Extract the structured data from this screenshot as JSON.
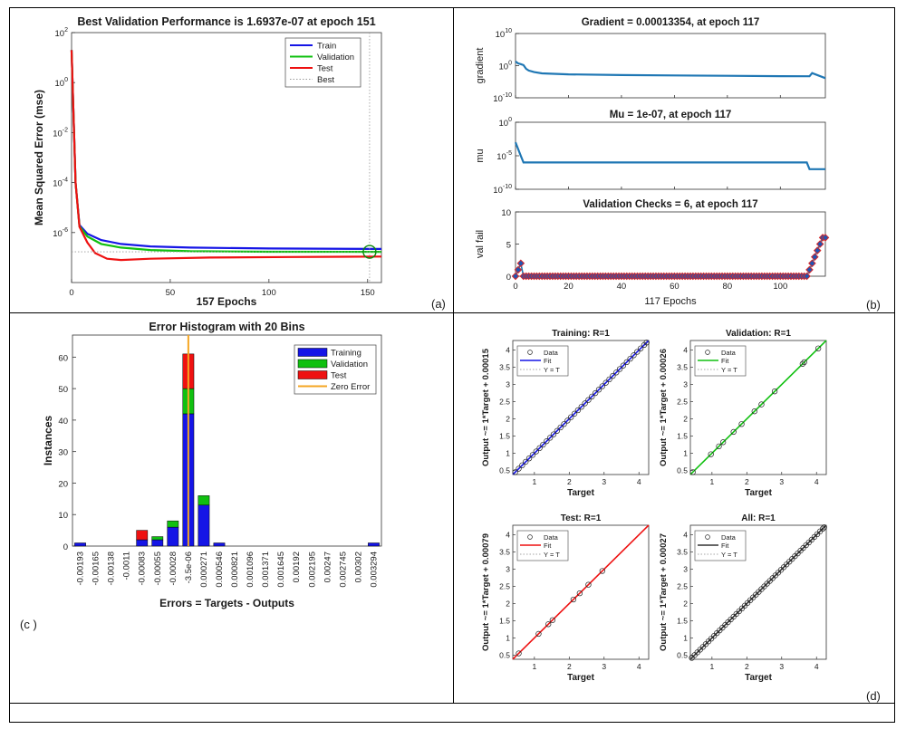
{
  "panels": {
    "a": {
      "letter": "(a)",
      "title": "Best Validation Performance is 1.6937e-07 at epoch 151",
      "xlabel": "157 Epochs",
      "ylabel": "Mean Squared Error  (mse)",
      "legend": [
        "Train",
        "Validation",
        "Test",
        "Best"
      ]
    },
    "b": {
      "letter": "(b)",
      "xlabel": "117 Epochs",
      "gradient": {
        "title": "Gradient = 0.00013354, at epoch 117",
        "ylabel": "gradient"
      },
      "mu": {
        "title": "Mu = 1e-07, at epoch 117",
        "ylabel": "mu"
      },
      "val": {
        "title": "Validation Checks = 6, at epoch 117",
        "ylabel": "val fail"
      }
    },
    "c": {
      "letter": "(c )",
      "title": "Error Histogram with 20 Bins",
      "xlabel": "Errors = Targets - Outputs",
      "ylabel": "Instances",
      "legend": [
        "Training",
        "Validation",
        "Test",
        "Zero Error"
      ]
    },
    "d": {
      "letter": "(d)",
      "xlabel": "Target",
      "legend": [
        "Data",
        "Fit",
        "Y = T"
      ]
    }
  },
  "colors": {
    "train": "#1515e6",
    "validation": "#10c010",
    "test": "#ee1111",
    "best": "#999999",
    "zero_error": "#f5a623",
    "training_curve": "#1f77b4",
    "val_marker_fill": "#1f55b4",
    "val_marker_edge": "#d62728",
    "all_fit": "#333333"
  },
  "chart_data": [
    {
      "id": "performance",
      "type": "line",
      "title": "Best Validation Performance is 1.6937e-07 at epoch 151",
      "xlabel": "157 Epochs",
      "ylabel": "Mean Squared Error  (mse)",
      "xlim": [
        0,
        157
      ],
      "ylim_log10": [
        -8,
        2
      ],
      "y_scale": "log",
      "xticks": [
        0,
        50,
        100,
        150
      ],
      "ytick_exponents": [
        2,
        0,
        -2,
        -4,
        -6
      ],
      "legend_position": "top-right",
      "series": [
        {
          "name": "Train",
          "x": [
            0,
            2,
            4,
            8,
            15,
            25,
            40,
            60,
            100,
            157
          ],
          "y": [
            20,
            0.0001,
            2e-06,
            9e-07,
            5e-07,
            3.5e-07,
            2.8e-07,
            2.5e-07,
            2.3e-07,
            2.2e-07
          ]
        },
        {
          "name": "Validation",
          "x": [
            0,
            2,
            4,
            8,
            15,
            25,
            40,
            60,
            100,
            157
          ],
          "y": [
            20,
            0.0001,
            1.8e-06,
            7e-07,
            3.5e-07,
            2.5e-07,
            2e-07,
            1.8e-07,
            1.7e-07,
            1.6937e-07
          ]
        },
        {
          "name": "Test",
          "x": [
            0,
            2,
            4,
            8,
            12,
            18,
            25,
            40,
            70,
            110,
            157
          ],
          "y": [
            20,
            0.0001,
            1.7e-06,
            4e-07,
            1.5e-07,
            9e-08,
            8e-08,
            9e-08,
            1e-07,
            1.05e-07,
            1.1e-07
          ]
        }
      ],
      "best": {
        "epoch": 151,
        "value": 1.6937e-07
      }
    },
    {
      "id": "gradient",
      "type": "line",
      "title": "Gradient = 0.00013354, at epoch 117",
      "ylabel": "gradient",
      "xlim": [
        0,
        117
      ],
      "ylim_log10": [
        -10,
        10
      ],
      "y_scale": "log",
      "ytick_exponents": [
        10,
        0,
        -10
      ],
      "x": [
        0,
        1,
        2,
        3,
        4,
        5,
        7,
        10,
        20,
        40,
        60,
        80,
        100,
        110,
        111,
        112,
        117
      ],
      "y": [
        20,
        5,
        3,
        1.5,
        0.1,
        0.03,
        0.01,
        0.004,
        0.002,
        0.0012,
        0.0009,
        0.0007,
        0.00055,
        0.0005,
        0.0005,
        0.005,
        0.00013354
      ]
    },
    {
      "id": "mu",
      "type": "line",
      "title": "Mu = 1e-07, at epoch 117",
      "ylabel": "mu",
      "xlim": [
        0,
        117
      ],
      "ylim_log10": [
        -10,
        0
      ],
      "y_scale": "log",
      "ytick_exponents": [
        0,
        -5,
        -10
      ],
      "x": [
        0,
        1,
        2,
        3,
        110,
        111,
        117
      ],
      "y": [
        0.001,
        0.0001,
        1e-05,
        1e-06,
        1e-06,
        1e-07,
        1e-07
      ]
    },
    {
      "id": "validation_checks",
      "type": "line",
      "title": "Validation Checks = 6, at epoch 117",
      "xlabel": "117 Epochs",
      "ylabel": "val fail",
      "xlim": [
        0,
        117
      ],
      "ylim": [
        0,
        10
      ],
      "xticks": [
        0,
        20,
        40,
        60,
        80,
        100
      ],
      "yticks": [
        0,
        5,
        10
      ],
      "x": [
        0,
        1,
        2,
        3,
        4,
        5,
        6,
        7,
        8,
        9,
        10,
        11,
        12,
        13,
        14,
        15,
        16,
        17,
        18,
        19,
        20,
        21,
        22,
        23,
        24,
        25,
        26,
        27,
        28,
        29,
        30,
        31,
        32,
        33,
        34,
        35,
        36,
        37,
        38,
        39,
        40,
        41,
        42,
        43,
        44,
        45,
        46,
        47,
        48,
        49,
        50,
        51,
        52,
        53,
        54,
        55,
        56,
        57,
        58,
        59,
        60,
        61,
        62,
        63,
        64,
        65,
        66,
        67,
        68,
        69,
        70,
        71,
        72,
        73,
        74,
        75,
        76,
        77,
        78,
        79,
        80,
        81,
        82,
        83,
        84,
        85,
        86,
        87,
        88,
        89,
        90,
        91,
        92,
        93,
        94,
        95,
        96,
        97,
        98,
        99,
        100,
        101,
        102,
        103,
        104,
        105,
        106,
        107,
        108,
        109,
        110,
        111,
        112,
        113,
        114,
        115,
        116,
        117
      ],
      "y": [
        0,
        1,
        2,
        0,
        0,
        0,
        0,
        0,
        0,
        0,
        0,
        0,
        0,
        0,
        0,
        0,
        0,
        0,
        0,
        0,
        0,
        0,
        0,
        0,
        0,
        0,
        0,
        0,
        0,
        0,
        0,
        0,
        0,
        0,
        0,
        0,
        0,
        0,
        0,
        0,
        0,
        0,
        0,
        0,
        0,
        0,
        0,
        0,
        0,
        0,
        0,
        0,
        0,
        0,
        0,
        0,
        0,
        0,
        0,
        0,
        0,
        0,
        0,
        0,
        0,
        0,
        0,
        0,
        0,
        0,
        0,
        0,
        0,
        0,
        0,
        0,
        0,
        0,
        0,
        0,
        0,
        0,
        0,
        0,
        0,
        0,
        0,
        0,
        0,
        0,
        0,
        0,
        0,
        0,
        0,
        0,
        0,
        0,
        0,
        0,
        0,
        0,
        0,
        0,
        0,
        0,
        0,
        0,
        0,
        0,
        0,
        1,
        2,
        3,
        4,
        5,
        6,
        6
      ]
    },
    {
      "id": "histogram",
      "type": "bar",
      "title": "Error Histogram with 20 Bins",
      "xlabel": "Errors = Targets - Outputs",
      "ylabel": "Instances",
      "ylim": [
        0,
        67
      ],
      "yticks": [
        0,
        10,
        20,
        30,
        40,
        50,
        60
      ],
      "categories": [
        "-0.00193",
        "-0.00165",
        "-0.00138",
        "-0.0011",
        "-0.00083",
        "-0.00055",
        "-0.00028",
        "-3.5e-06",
        "0.000271",
        "0.000546",
        "0.000821",
        "0.001096",
        "0.001371",
        "0.001645",
        "0.00192",
        "0.002195",
        "0.00247",
        "0.002745",
        "0.00302",
        "0.003294"
      ],
      "series": [
        {
          "name": "Training",
          "values": [
            1,
            0,
            0,
            0,
            2,
            2,
            6,
            42,
            13,
            1,
            0,
            0,
            0,
            0,
            0,
            0,
            0,
            0,
            0,
            1
          ]
        },
        {
          "name": "Validation",
          "values": [
            0,
            0,
            0,
            0,
            0,
            1,
            2,
            8,
            3,
            0,
            0,
            0,
            0,
            0,
            0,
            0,
            0,
            0,
            0,
            0
          ]
        },
        {
          "name": "Test",
          "values": [
            0,
            0,
            0,
            0,
            3,
            0,
            0,
            11,
            0,
            0,
            0,
            0,
            0,
            0,
            0,
            0,
            0,
            0,
            0,
            0
          ]
        }
      ],
      "zero_error_category": "-3.5e-06",
      "legend_position": "top-right"
    },
    {
      "id": "regression_training",
      "type": "scatter",
      "title": "Training: R=1",
      "xlabel": "Target",
      "ylabel": "Output ~= 1*Target + 0.00015",
      "xlim": [
        0.38,
        4.28
      ],
      "ylim": [
        0.38,
        4.28
      ],
      "xticks": [
        1,
        2,
        3,
        4
      ],
      "yticks": [
        0.5,
        1,
        1.5,
        2,
        2.5,
        3,
        3.5,
        4
      ],
      "fit": {
        "slope": 1,
        "intercept": 0.00015
      },
      "data_points": [
        0.45,
        0.55,
        0.65,
        0.75,
        0.85,
        0.95,
        1.05,
        1.15,
        1.25,
        1.35,
        1.45,
        1.55,
        1.65,
        1.75,
        1.85,
        1.95,
        2.05,
        2.15,
        2.25,
        2.35,
        2.45,
        2.55,
        2.65,
        2.75,
        2.85,
        2.95,
        3.05,
        3.15,
        3.25,
        3.35,
        3.45,
        3.55,
        3.65,
        3.75,
        3.85,
        3.95,
        4.05,
        4.15,
        4.22
      ]
    },
    {
      "id": "regression_validation",
      "type": "scatter",
      "title": "Validation: R=1",
      "xlabel": "Target",
      "ylabel": "Output ~= 1*Target + 0.00026",
      "xlim": [
        0.38,
        4.28
      ],
      "ylim": [
        0.38,
        4.28
      ],
      "xticks": [
        1,
        2,
        3,
        4
      ],
      "yticks": [
        0.5,
        1,
        1.5,
        2,
        2.5,
        3,
        3.5,
        4
      ],
      "fit": {
        "slope": 1,
        "intercept": 0.00026
      },
      "data_points": [
        0.45,
        0.97,
        1.2,
        1.32,
        1.62,
        1.85,
        2.22,
        2.42,
        2.8,
        3.6,
        3.65,
        4.05
      ]
    },
    {
      "id": "regression_test",
      "type": "scatter",
      "title": "Test: R=1",
      "xlabel": "Target",
      "ylabel": "Output ~= 1*Target + 0.00079",
      "xlim": [
        0.38,
        4.28
      ],
      "ylim": [
        0.38,
        4.28
      ],
      "xticks": [
        1,
        2,
        3,
        4
      ],
      "yticks": [
        0.5,
        1,
        1.5,
        2,
        2.5,
        3,
        3.5,
        4
      ],
      "fit": {
        "slope": 1,
        "intercept": 0.00079
      },
      "data_points": [
        0.55,
        1.12,
        1.4,
        1.52,
        2.12,
        2.3,
        2.55,
        2.95
      ]
    },
    {
      "id": "regression_all",
      "type": "scatter",
      "title": "All: R=1",
      "xlabel": "Target",
      "ylabel": "Output ~= 1*Target + 0.00027",
      "xlim": [
        0.38,
        4.28
      ],
      "ylim": [
        0.38,
        4.28
      ],
      "xticks": [
        1,
        2,
        3,
        4
      ],
      "yticks": [
        0.5,
        1,
        1.5,
        2,
        2.5,
        3,
        3.5,
        4
      ],
      "fit": {
        "slope": 1,
        "intercept": 0.00027
      },
      "data_points": [
        0.42,
        0.5,
        0.58,
        0.66,
        0.74,
        0.82,
        0.9,
        0.98,
        1.06,
        1.14,
        1.22,
        1.3,
        1.38,
        1.46,
        1.54,
        1.62,
        1.7,
        1.78,
        1.86,
        1.94,
        2.02,
        2.1,
        2.18,
        2.26,
        2.34,
        2.42,
        2.5,
        2.58,
        2.66,
        2.74,
        2.82,
        2.9,
        2.98,
        3.06,
        3.14,
        3.22,
        3.3,
        3.38,
        3.46,
        3.54,
        3.62,
        3.7,
        3.78,
        3.86,
        3.94,
        4.02,
        4.1,
        4.18,
        4.22
      ]
    }
  ]
}
